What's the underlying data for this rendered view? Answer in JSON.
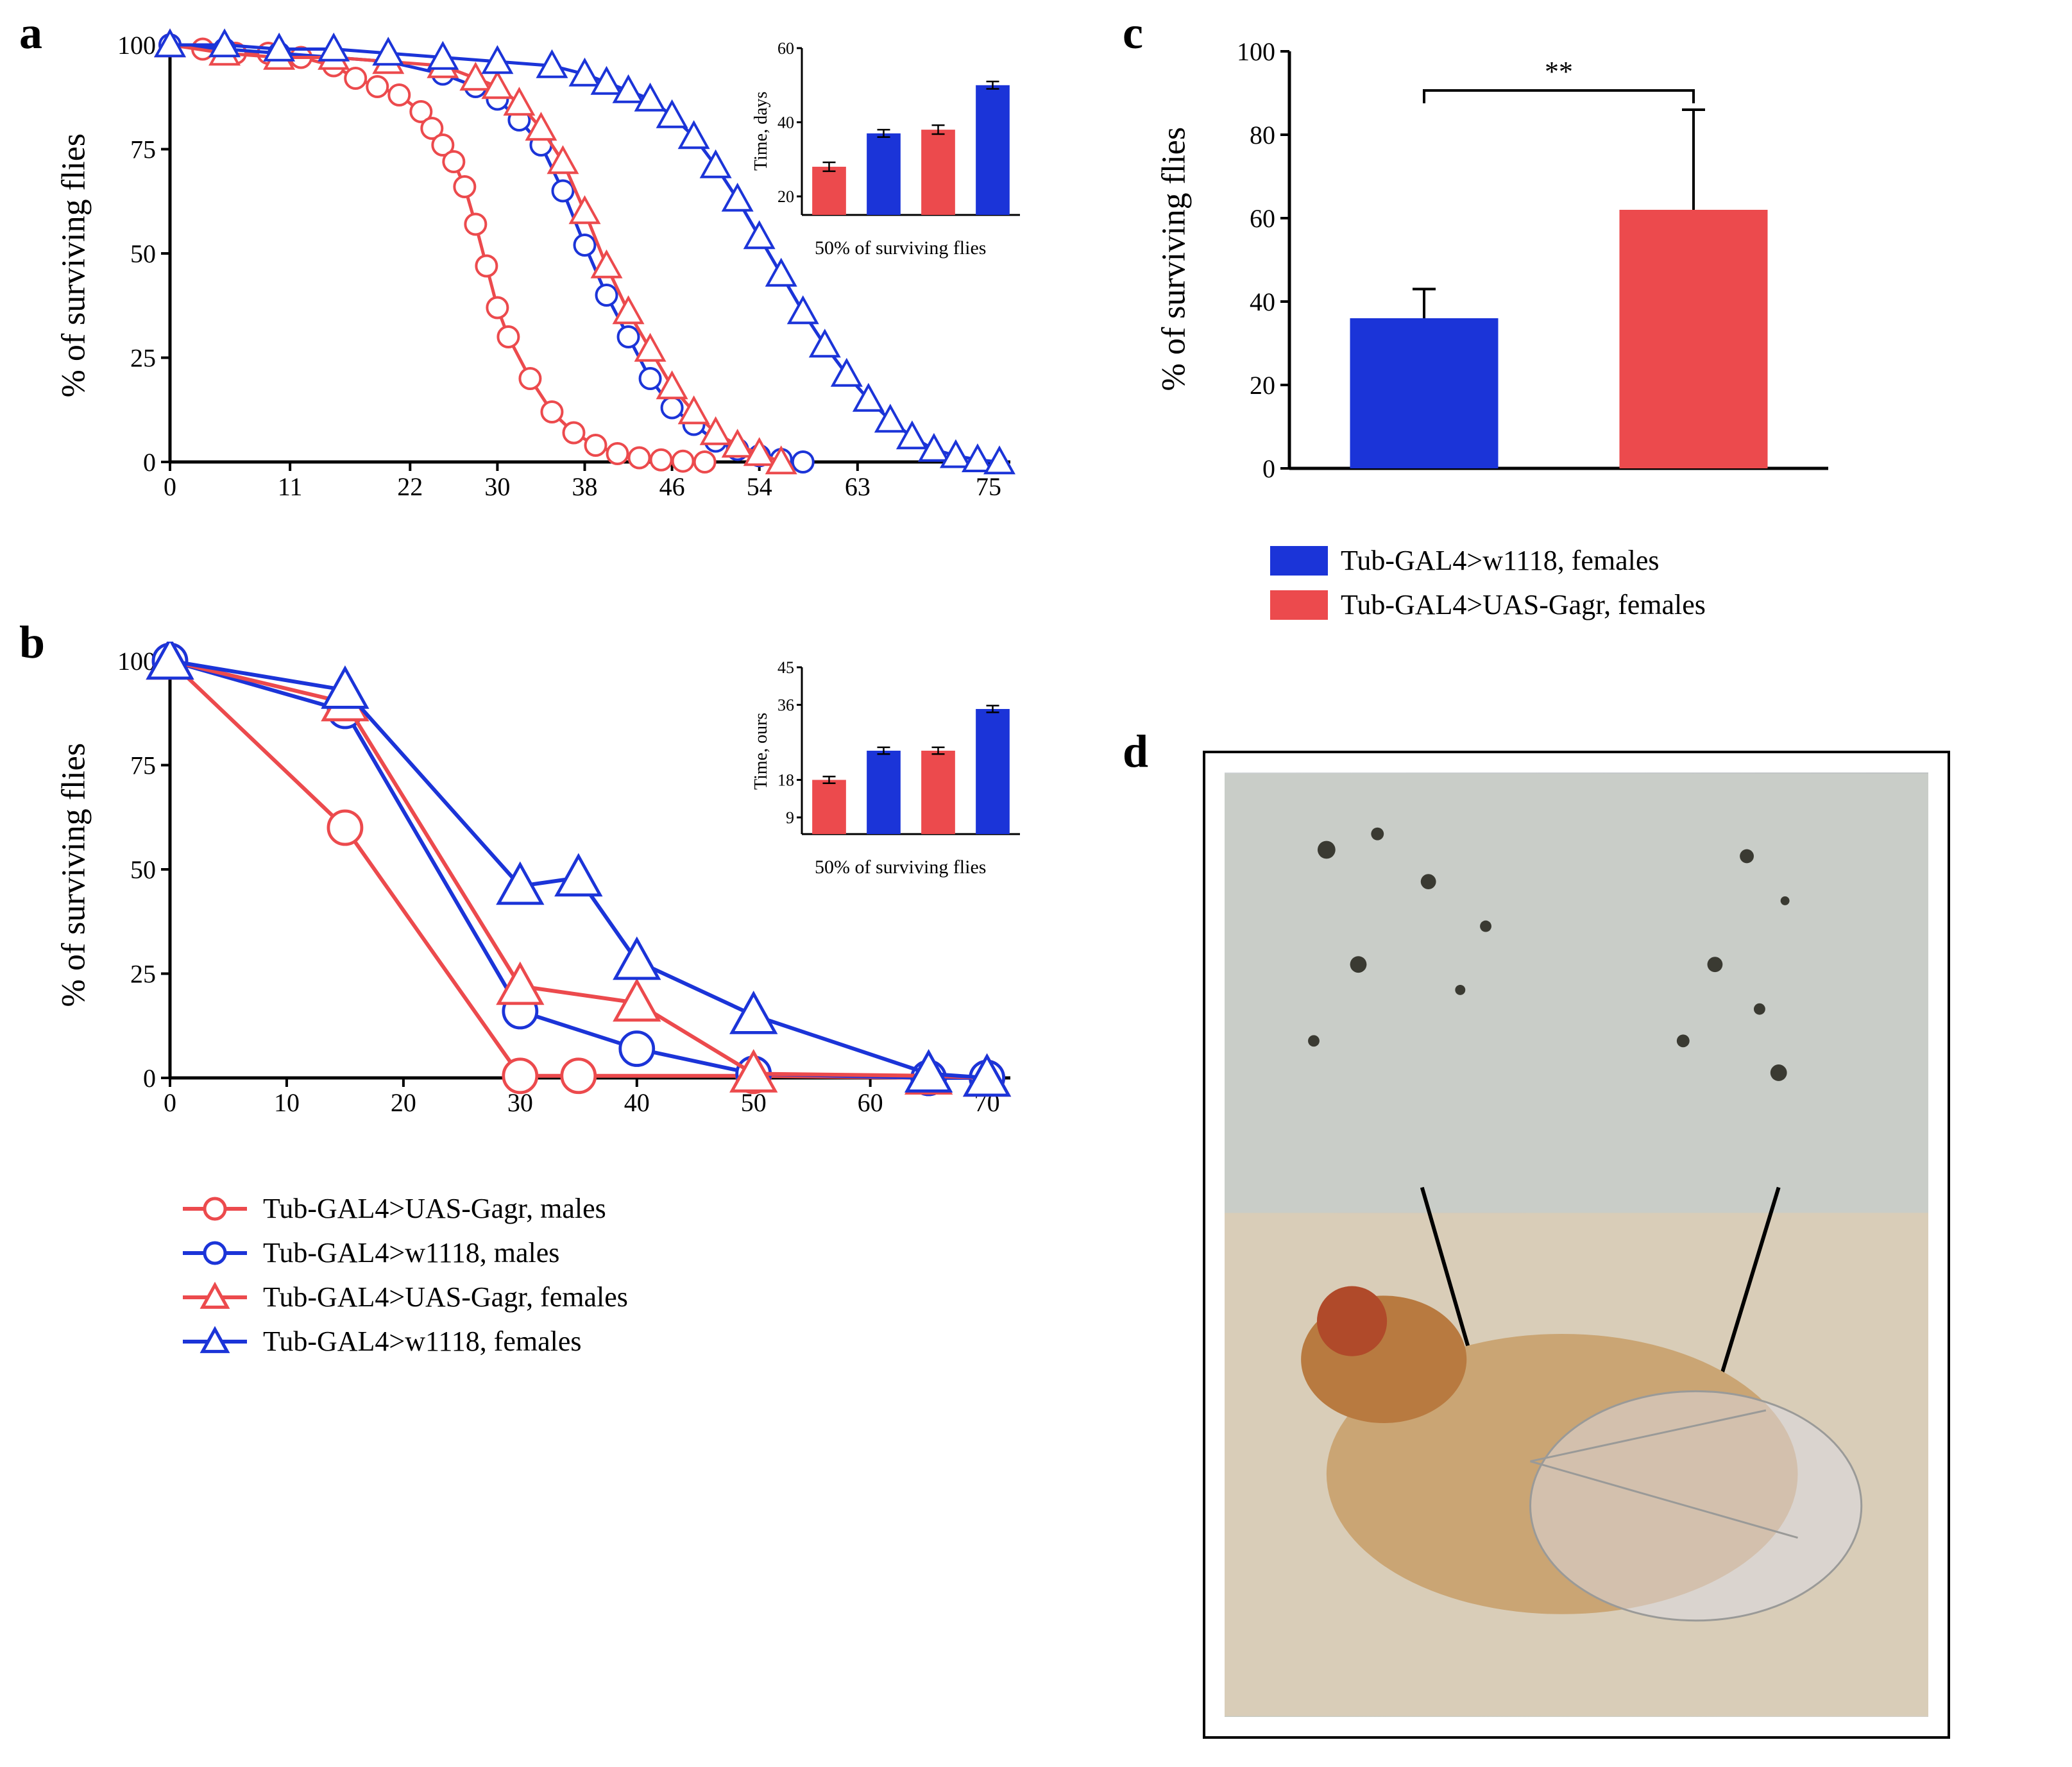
{
  "colors": {
    "red": "#ec4a4d",
    "blue": "#1b34d8",
    "axis": "#000000",
    "bg": "#ffffff"
  },
  "panelA": {
    "label": "a",
    "ylabel": "% of surviving flies",
    "xticks": [
      0,
      11,
      22,
      30,
      38,
      46,
      54,
      63,
      75
    ],
    "yticks": [
      0,
      25,
      50,
      75,
      100
    ],
    "xlim": [
      0,
      77
    ],
    "ylim": [
      0,
      100
    ],
    "series": [
      {
        "key": "red_circle",
        "color": "#ec4a4d",
        "marker": "circle",
        "lw": 5,
        "ms": 16,
        "x": [
          0,
          3,
          6,
          9,
          12,
          15,
          17,
          19,
          21,
          23,
          24,
          25,
          26,
          27,
          28,
          29,
          30,
          31,
          33,
          35,
          37,
          39,
          41,
          43,
          45,
          47,
          49
        ],
        "y": [
          100,
          99,
          98,
          98,
          97,
          95,
          92,
          90,
          88,
          84,
          80,
          76,
          72,
          66,
          57,
          47,
          37,
          30,
          20,
          12,
          7,
          4,
          2,
          1,
          0.5,
          0.2,
          0
        ]
      },
      {
        "key": "blue_circle",
        "color": "#1b34d8",
        "marker": "circle",
        "lw": 5,
        "ms": 16,
        "x": [
          0,
          5,
          10,
          15,
          20,
          25,
          28,
          30,
          32,
          34,
          36,
          38,
          40,
          42,
          44,
          46,
          48,
          50,
          52,
          54,
          56,
          58
        ],
        "y": [
          100,
          99,
          98,
          97,
          96,
          93,
          90,
          87,
          82,
          76,
          65,
          52,
          40,
          30,
          20,
          13,
          9,
          5,
          3,
          1.5,
          0.6,
          0
        ]
      },
      {
        "key": "red_triangle",
        "color": "#ec4a4d",
        "marker": "triangle",
        "lw": 5,
        "ms": 18,
        "x": [
          0,
          5,
          10,
          15,
          20,
          25,
          28,
          30,
          32,
          34,
          36,
          38,
          40,
          42,
          44,
          46,
          48,
          50,
          52,
          54,
          56
        ],
        "y": [
          100,
          98,
          97,
          97,
          96,
          95,
          92,
          90,
          86,
          80,
          72,
          60,
          47,
          36,
          27,
          18,
          12,
          7,
          4,
          2,
          0
        ]
      },
      {
        "key": "blue_triangle",
        "color": "#1b34d8",
        "marker": "triangle",
        "lw": 5,
        "ms": 18,
        "x": [
          0,
          5,
          10,
          15,
          20,
          25,
          30,
          35,
          38,
          40,
          42,
          44,
          46,
          48,
          50,
          52,
          54,
          56,
          58,
          60,
          62,
          64,
          66,
          68,
          70,
          72,
          74,
          76
        ],
        "y": [
          100,
          100,
          99,
          99,
          98,
          97,
          96,
          95,
          93,
          91,
          89,
          87,
          83,
          78,
          71,
          63,
          54,
          45,
          36,
          28,
          21,
          15,
          10,
          6,
          3,
          1.5,
          0.5,
          0
        ]
      }
    ],
    "inset": {
      "ylabel": "Time, days",
      "caption": "50% of surviving flies",
      "yticks": [
        20,
        40,
        60
      ],
      "ylim": [
        15,
        60
      ],
      "bars": [
        {
          "color": "#ec4a4d",
          "value": 28,
          "err": 1.2
        },
        {
          "color": "#1b34d8",
          "value": 37,
          "err": 1.0
        },
        {
          "color": "#ec4a4d",
          "value": 38,
          "err": 1.2
        },
        {
          "color": "#1b34d8",
          "value": 50,
          "err": 1.0
        }
      ]
    }
  },
  "panelB": {
    "label": "b",
    "ylabel": "% of surviving flies",
    "xticks": [
      0,
      10,
      20,
      30,
      40,
      50,
      60,
      70
    ],
    "yticks": [
      0,
      25,
      50,
      75,
      100
    ],
    "xlim": [
      0,
      72
    ],
    "ylim": [
      0,
      100
    ],
    "series": [
      {
        "key": "red_circle",
        "color": "#ec4a4d",
        "marker": "circle",
        "lw": 6,
        "ms": 26,
        "x": [
          0,
          15,
          30,
          35,
          50,
          65,
          70
        ],
        "y": [
          100,
          60,
          0.5,
          0.5,
          0.5,
          0,
          0
        ]
      },
      {
        "key": "blue_circle",
        "color": "#1b34d8",
        "marker": "circle",
        "lw": 6,
        "ms": 26,
        "x": [
          0,
          15,
          30,
          40,
          50,
          65,
          70
        ],
        "y": [
          100,
          88,
          16,
          7,
          1,
          0,
          0
        ]
      },
      {
        "key": "red_triangle",
        "color": "#ec4a4d",
        "marker": "triangle",
        "lw": 6,
        "ms": 28,
        "x": [
          0,
          15,
          30,
          40,
          50,
          65,
          70
        ],
        "y": [
          100,
          90,
          22,
          18,
          1,
          0.5,
          0
        ]
      },
      {
        "key": "blue_triangle",
        "color": "#1b34d8",
        "marker": "triangle",
        "lw": 6,
        "ms": 28,
        "x": [
          0,
          15,
          30,
          35,
          40,
          50,
          65,
          70
        ],
        "y": [
          100,
          93,
          46,
          48,
          28,
          15,
          1,
          0
        ]
      }
    ],
    "inset": {
      "ylabel": "Time, ours",
      "caption": "50% of surviving flies",
      "yticks": [
        9,
        18,
        36,
        45
      ],
      "ylim": [
        5,
        45
      ],
      "bars": [
        {
          "color": "#ec4a4d",
          "value": 18,
          "err": 0.8
        },
        {
          "color": "#1b34d8",
          "value": 25,
          "err": 0.8
        },
        {
          "color": "#ec4a4d",
          "value": 25,
          "err": 0.8
        },
        {
          "color": "#1b34d8",
          "value": 35,
          "err": 0.8
        }
      ]
    }
  },
  "panelC": {
    "label": "c",
    "ylabel": "% of surviving flies",
    "yticks": [
      0,
      20,
      40,
      60,
      80,
      100
    ],
    "ylim": [
      0,
      100
    ],
    "sig": "**",
    "bars": [
      {
        "color": "#1b34d8",
        "value": 36,
        "err": 7
      },
      {
        "color": "#ec4a4d",
        "value": 62,
        "err": 24
      }
    ],
    "legend": [
      {
        "swatch": "#1b34d8",
        "label": "Tub-GAL4>w1118, females"
      },
      {
        "swatch": "#ec4a4d",
        "label": "Tub-GAL4>UAS-Gagr, females"
      }
    ]
  },
  "panelD": {
    "label": "d"
  },
  "seriesLegend": [
    {
      "key": "red_circle",
      "color": "#ec4a4d",
      "marker": "circle",
      "label": "Tub-GAL4>UAS-Gagr, males"
    },
    {
      "key": "blue_circle",
      "color": "#1b34d8",
      "marker": "circle",
      "label": "Tub-GAL4>w1118, males"
    },
    {
      "key": "red_triangle",
      "color": "#ec4a4d",
      "marker": "triangle",
      "label": "Tub-GAL4>UAS-Gagr, females"
    },
    {
      "key": "blue_triangle",
      "color": "#1b34d8",
      "marker": "triangle",
      "label": "Tub-GAL4>w1118, females"
    }
  ]
}
